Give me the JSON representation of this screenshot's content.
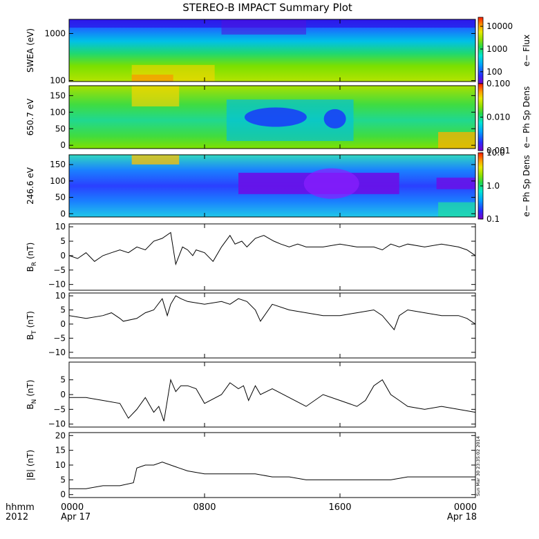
{
  "chart_data": {
    "title": "STEREO-B IMPACT Summary Plot",
    "time": {
      "start_hour": 0,
      "end_hour": 24,
      "tick_labels": [
        "0000",
        "0800",
        "1600",
        "0000"
      ],
      "tick_hours": [
        0,
        8,
        16,
        24
      ],
      "date_labels": [
        "Apr 17",
        "Apr 18"
      ],
      "corner_labels": [
        "hhmm",
        "2012"
      ]
    },
    "timestamp": "Sun Mar 30 23:35:02 2014",
    "spectrograms": [
      {
        "name": "swea",
        "ylabel": "SWEA (eV)",
        "ylog": true,
        "ylim": [
          95,
          2000
        ],
        "yticks": [
          100,
          1000
        ],
        "ytick_labels": [
          "100",
          "1000"
        ],
        "cbar_label": "e− Flux",
        "cbar_log": true,
        "cbar_range": [
          30,
          25000
        ],
        "cbar_ticks": [
          100,
          1000,
          10000
        ],
        "cbar_tick_labels": [
          "100",
          "1000",
          "10000"
        ]
      },
      {
        "name": "pad650",
        "ylabel": "650.7 eV",
        "ylog": false,
        "ylim": [
          -10,
          180
        ],
        "yticks": [
          0,
          50,
          100,
          150
        ],
        "ytick_labels": [
          "0",
          "50",
          "100",
          "150"
        ],
        "cbar_label": "e− Ph Sp Dens",
        "cbar_log": true,
        "cbar_range": [
          0.001,
          0.1
        ],
        "cbar_ticks": [
          0.001,
          0.01,
          0.1
        ],
        "cbar_tick_labels": [
          "0.001",
          "0.010",
          "0.100"
        ]
      },
      {
        "name": "pad246",
        "ylabel": "246.6 eV",
        "ylog": false,
        "ylim": [
          -10,
          180
        ],
        "yticks": [
          0,
          50,
          100,
          150
        ],
        "ytick_labels": [
          "0",
          "50",
          "100",
          "150"
        ],
        "cbar_label": "e− Ph Sp Dens",
        "cbar_log": true,
        "cbar_range": [
          0.1,
          10
        ],
        "cbar_ticks": [
          0.1,
          1,
          10
        ],
        "cbar_tick_labels": [
          "0.1",
          "1.0",
          "10.0"
        ]
      }
    ],
    "line_panels": [
      {
        "name": "br",
        "ylabel_main": "B",
        "ylabel_sub": "R",
        "ylabel_unit": " (nT)",
        "ylim": [
          -12,
          11
        ],
        "yticks": [
          -10,
          -5,
          0,
          5,
          10
        ],
        "ytick_labels": [
          "−10",
          "−5",
          "0",
          "5",
          "10"
        ],
        "x": [
          0,
          0.5,
          1,
          1.5,
          2,
          2.5,
          3,
          3.5,
          4,
          4.5,
          5,
          5.5,
          6,
          6.3,
          6.7,
          7,
          7.3,
          7.5,
          8,
          8.5,
          9,
          9.5,
          9.8,
          10.2,
          10.5,
          11,
          11.5,
          11.8,
          12.1,
          12.5,
          13,
          13.5,
          14,
          15,
          16,
          17,
          18,
          18.5,
          19,
          19.5,
          20,
          21,
          22,
          23,
          23.5,
          24
        ],
        "y": [
          0,
          -1,
          1,
          -2,
          0,
          1,
          2,
          1,
          3,
          2,
          5,
          6,
          8,
          -3,
          3,
          2,
          0,
          2,
          1,
          -2,
          3,
          7,
          4,
          5,
          3,
          6,
          7,
          6,
          5,
          4,
          3,
          4,
          3,
          3,
          4,
          3,
          3,
          2,
          4,
          3,
          4,
          3,
          4,
          3,
          2,
          0
        ]
      },
      {
        "name": "bt",
        "ylabel_main": "B",
        "ylabel_sub": "T",
        "ylabel_unit": " (nT)",
        "ylim": [
          -12,
          11
        ],
        "yticks": [
          -10,
          -5,
          0,
          5,
          10
        ],
        "ytick_labels": [
          "−10",
          "−5",
          "0",
          "5",
          "10"
        ],
        "x": [
          0,
          1,
          2,
          2.5,
          3,
          3.2,
          4,
          4.5,
          5,
          5.5,
          5.8,
          6,
          6.3,
          6.6,
          7,
          8,
          9,
          9.5,
          10,
          10.5,
          11,
          11.3,
          12,
          13,
          14,
          15,
          16,
          17,
          18,
          18.5,
          19.2,
          19.5,
          20,
          21,
          22,
          23,
          23.5,
          24
        ],
        "y": [
          3,
          2,
          3,
          4,
          2,
          1,
          2,
          4,
          5,
          9,
          3,
          7,
          10,
          9,
          8,
          7,
          8,
          7,
          9,
          8,
          5,
          1,
          7,
          5,
          4,
          3,
          3,
          4,
          5,
          3,
          -2,
          3,
          5,
          4,
          3,
          3,
          2,
          0
        ]
      },
      {
        "name": "bn",
        "ylabel_main": "B",
        "ylabel_sub": "N",
        "ylabel_unit": " (nT)",
        "ylim": [
          -11,
          11
        ],
        "yticks": [
          -10,
          -5,
          0,
          5
        ],
        "ytick_labels": [
          "−10",
          "−5",
          "0",
          "5"
        ],
        "x": [
          0,
          1,
          2,
          3,
          3.5,
          4,
          4.5,
          5,
          5.3,
          5.6,
          6,
          6.3,
          6.6,
          7,
          7.5,
          8,
          9,
          9.5,
          10,
          10.3,
          10.6,
          11,
          11.3,
          12,
          13,
          14,
          15,
          16,
          17,
          17.5,
          18,
          18.5,
          19,
          19.5,
          20,
          21,
          22,
          23,
          24
        ],
        "y": [
          -1,
          -1,
          -2,
          -3,
          -8,
          -5,
          -1,
          -6,
          -4,
          -9,
          5,
          1,
          3,
          3,
          2,
          -3,
          0,
          4,
          2,
          3,
          -2,
          3,
          0,
          2,
          -1,
          -4,
          0,
          -2,
          -4,
          -2,
          3,
          5,
          0,
          -2,
          -4,
          -5,
          -4,
          -5,
          -6
        ]
      },
      {
        "name": "bmag",
        "ylabel_main": "|B|",
        "ylabel_sub": "",
        "ylabel_unit": " (nT)",
        "ylim": [
          -1,
          21
        ],
        "yticks": [
          0,
          5,
          10,
          15,
          20
        ],
        "ytick_labels": [
          "0",
          "5",
          "10",
          "15",
          "20"
        ],
        "x": [
          0,
          1,
          2,
          3,
          3.8,
          4,
          4.5,
          5,
          5.5,
          6,
          6.5,
          7,
          8,
          9,
          10,
          11,
          12,
          13,
          14,
          15,
          16,
          17,
          18,
          19,
          20,
          21,
          22,
          23,
          24
        ],
        "y": [
          2,
          2,
          3,
          3,
          4,
          9,
          10,
          10,
          11,
          10,
          9,
          8,
          7,
          7,
          7,
          7,
          6,
          6,
          5,
          5,
          5,
          5,
          5,
          5,
          6,
          6,
          6,
          6,
          6
        ]
      }
    ]
  }
}
